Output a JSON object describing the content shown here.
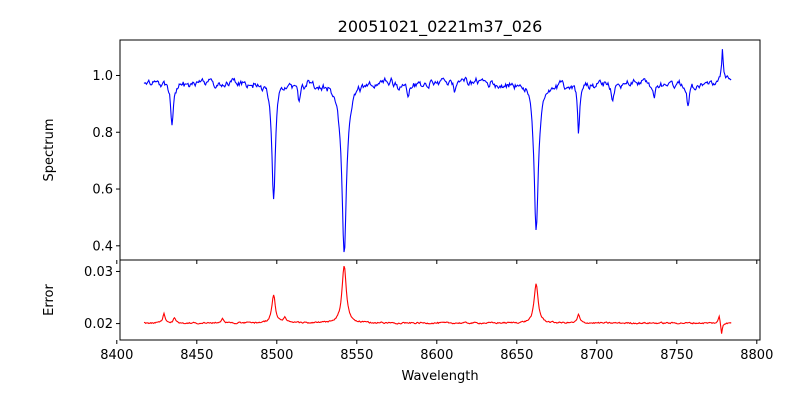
{
  "chart_data": [
    {
      "type": "line",
      "panel": "top",
      "title": "20051021_0221m37_026",
      "xlabel": "",
      "ylabel": "Spectrum",
      "xlim": [
        8402,
        8802
      ],
      "ylim": [
        0.35,
        1.125
      ],
      "yticks": [
        0.4,
        0.6,
        0.8,
        1.0
      ],
      "ytick_labels": [
        "0.4",
        "0.6",
        "0.8",
        "1.0"
      ],
      "grid": false,
      "series": [
        {
          "color": "#0000ff",
          "x_range": [
            8417,
            8784
          ],
          "baseline": 0.975,
          "noise_amplitude": 0.02,
          "absorption_lines": [
            {
              "center": 8434.5,
              "depth": 0.14,
              "width": 1.0
            },
            {
              "center": 8498.0,
              "depth": 0.41,
              "width": 1.3
            },
            {
              "center": 8542.1,
              "depth": 0.59,
              "width": 1.8
            },
            {
              "center": 8662.1,
              "depth": 0.53,
              "width": 1.6
            },
            {
              "center": 8688.6,
              "depth": 0.18,
              "width": 0.9
            },
            {
              "center": 8514.0,
              "depth": 0.06,
              "width": 1.0
            },
            {
              "center": 8582.0,
              "depth": 0.04,
              "width": 1.0
            },
            {
              "center": 8611.0,
              "depth": 0.04,
              "width": 1.0
            },
            {
              "center": 8710.0,
              "depth": 0.06,
              "width": 1.0
            },
            {
              "center": 8736.0,
              "depth": 0.05,
              "width": 1.0
            },
            {
              "center": 8757.0,
              "depth": 0.07,
              "width": 1.0
            }
          ],
          "emission_spikes": [
            {
              "center": 8778.5,
              "height": 0.11,
              "width": 0.6
            }
          ]
        }
      ]
    },
    {
      "type": "line",
      "panel": "bottom",
      "xlabel": "Wavelength",
      "ylabel": "Error",
      "xlim": [
        8402,
        8802
      ],
      "ylim": [
        0.01685,
        0.0322
      ],
      "xticks": [
        8400,
        8450,
        8500,
        8550,
        8600,
        8650,
        8700,
        8750,
        8800
      ],
      "xtick_labels": [
        "8400",
        "8450",
        "8500",
        "8550",
        "8600",
        "8650",
        "8700",
        "8750",
        "8800"
      ],
      "yticks": [
        0.02,
        0.03
      ],
      "ytick_labels": [
        "0.02",
        "0.03"
      ],
      "grid": false,
      "series": [
        {
          "color": "#ff0000",
          "x_range": [
            8417,
            8784
          ],
          "baseline": 0.0201,
          "noise_amplitude": 0.00025,
          "peaks": [
            {
              "center": 8429.5,
              "height": 0.0018,
              "width": 0.8
            },
            {
              "center": 8436.0,
              "height": 0.001,
              "width": 0.8
            },
            {
              "center": 8466.0,
              "height": 0.0009,
              "width": 1.0
            },
            {
              "center": 8498.0,
              "height": 0.0055,
              "width": 1.3
            },
            {
              "center": 8505.0,
              "height": 0.001,
              "width": 1.0
            },
            {
              "center": 8542.1,
              "height": 0.011,
              "width": 1.6
            },
            {
              "center": 8662.1,
              "height": 0.0075,
              "width": 1.5
            },
            {
              "center": 8688.6,
              "height": 0.0016,
              "width": 0.9
            },
            {
              "center": 8776.5,
              "height": 0.0015,
              "width": 0.6
            }
          ],
          "dips": [
            {
              "center": 8778.0,
              "depth": 0.0022,
              "width": 0.5
            }
          ]
        }
      ]
    }
  ]
}
